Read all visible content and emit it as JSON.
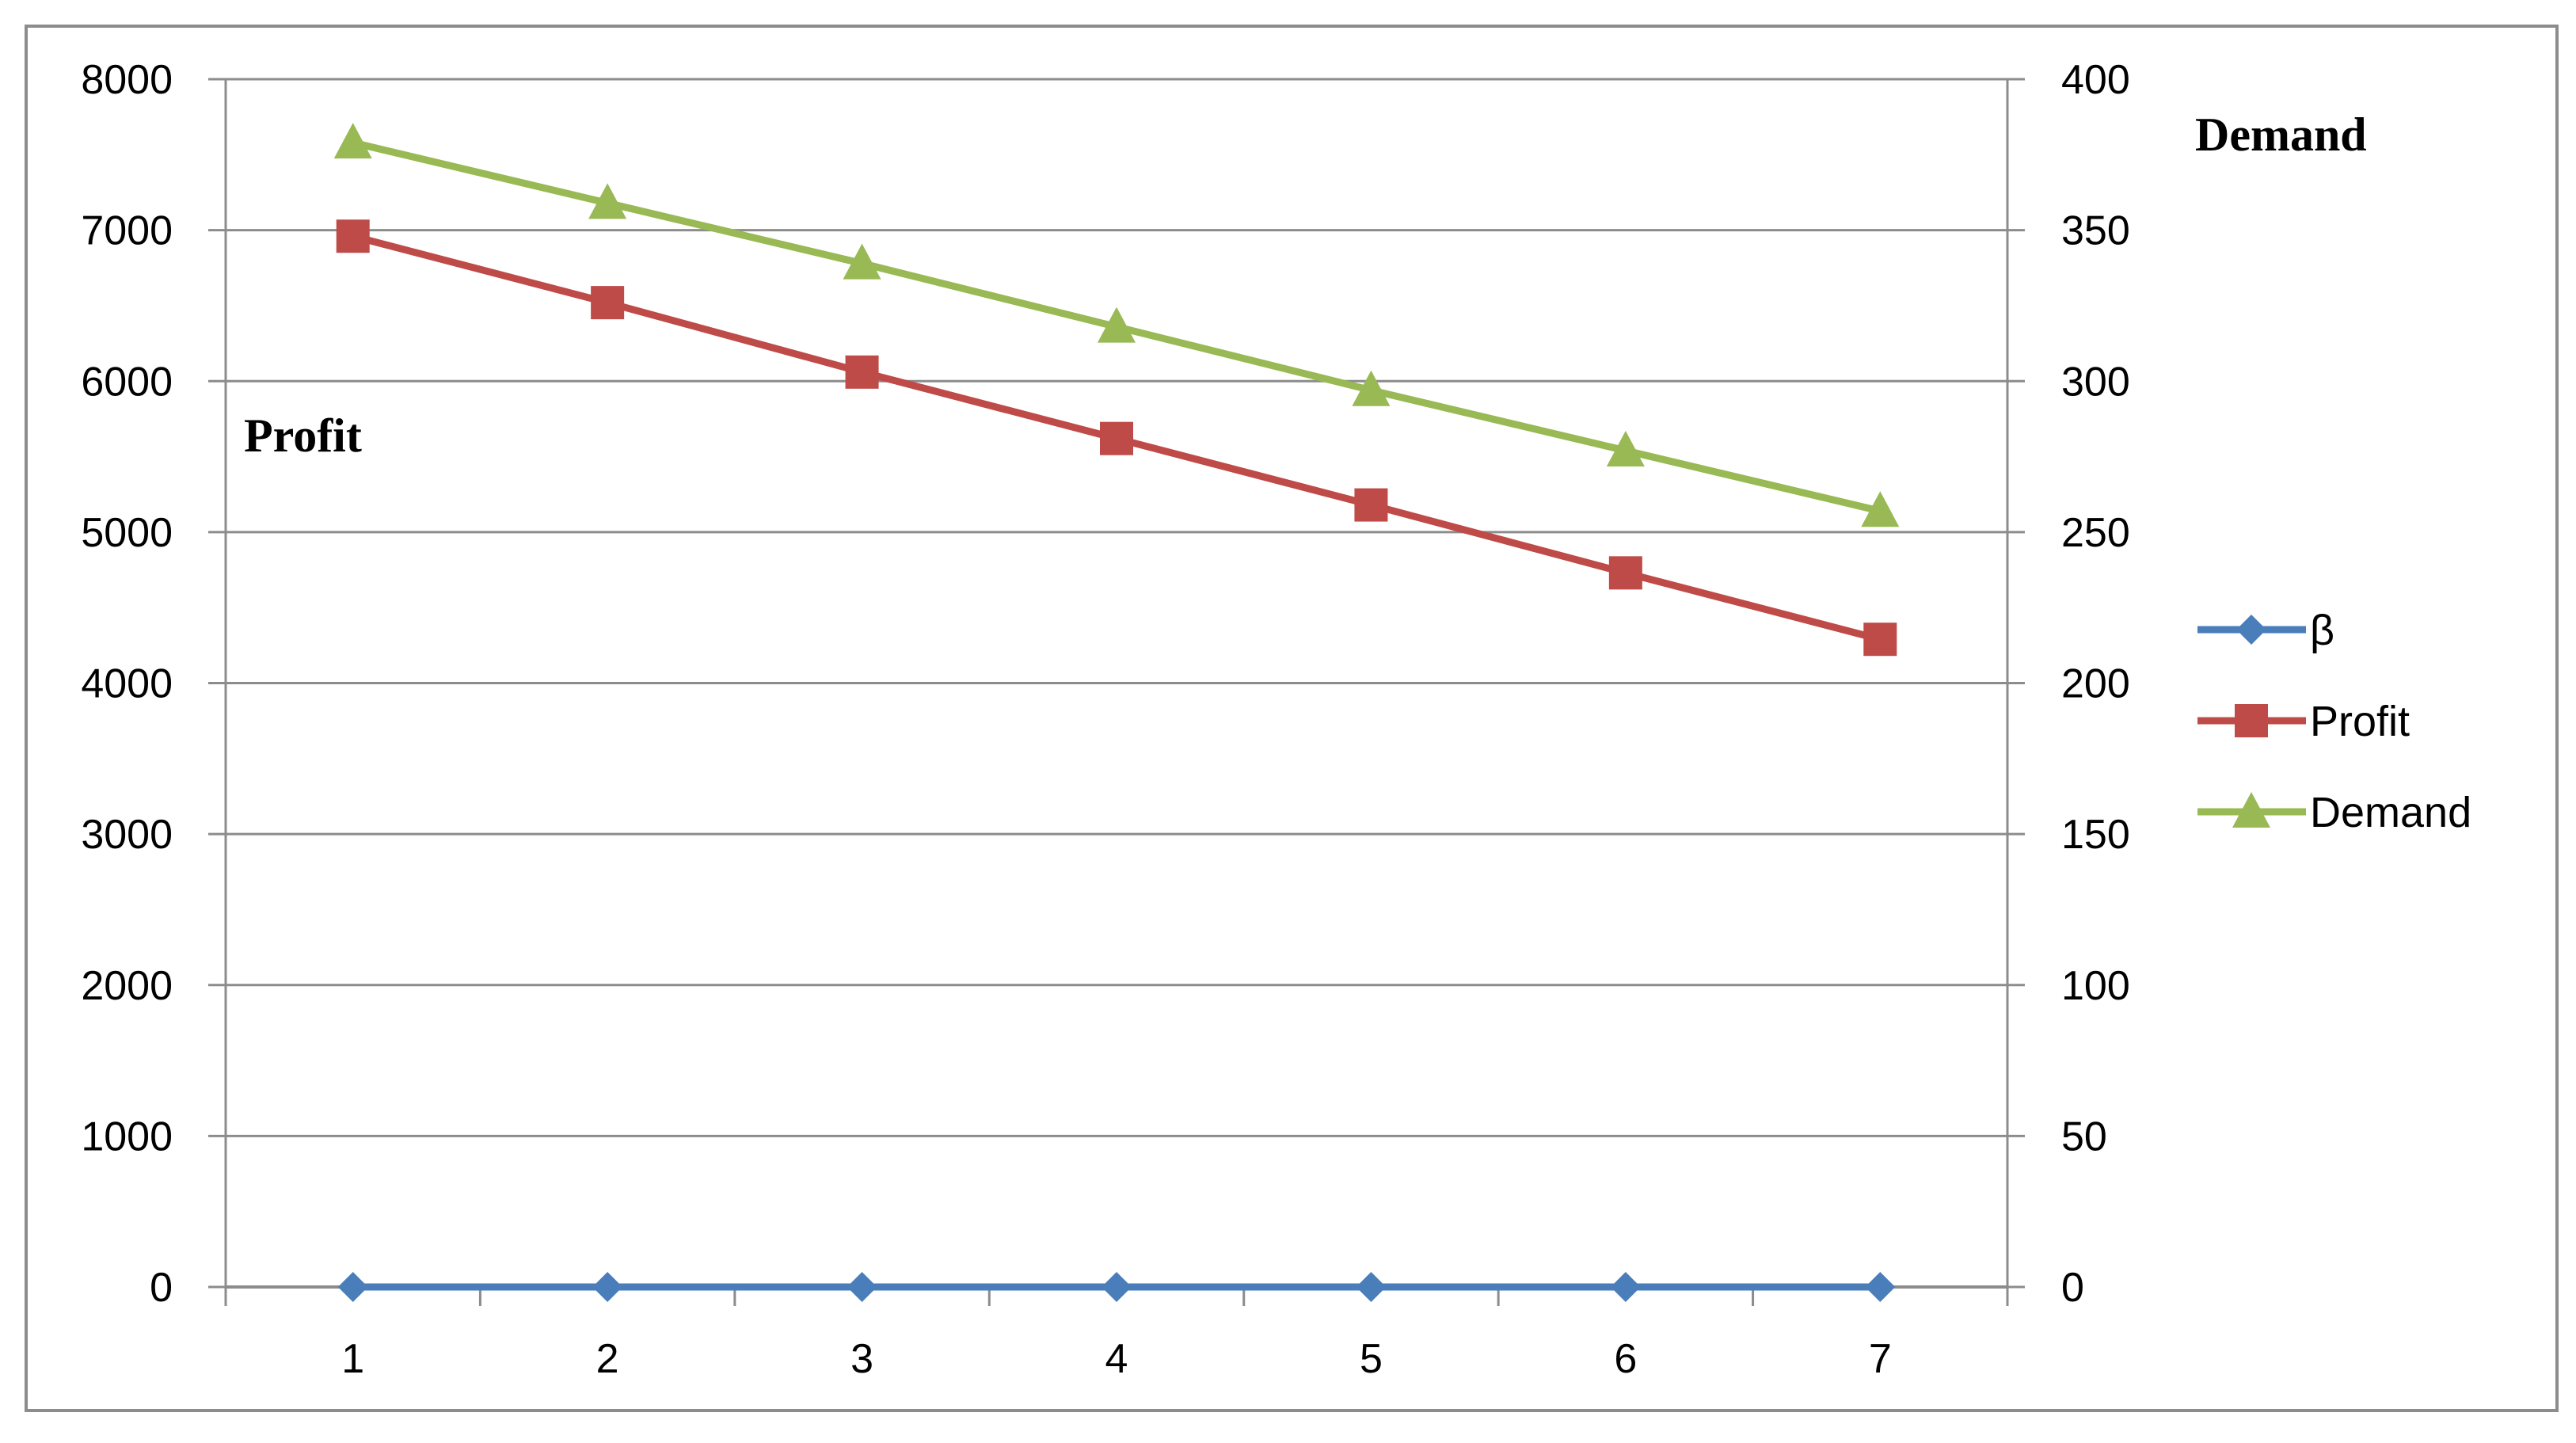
{
  "chart_data": {
    "type": "line",
    "x": [
      1,
      2,
      3,
      4,
      5,
      6,
      7
    ],
    "y_left": {
      "label": "Profit",
      "range": [
        0,
        8000
      ],
      "ticks": [
        0,
        1000,
        2000,
        3000,
        4000,
        5000,
        6000,
        7000,
        8000
      ]
    },
    "y_right": {
      "label": "Demand",
      "range": [
        0,
        400
      ],
      "ticks": [
        0,
        50,
        100,
        150,
        200,
        250,
        300,
        350,
        400
      ]
    },
    "series": [
      {
        "name": "β",
        "axis": "left",
        "marker": "diamond",
        "color": "#4a7ebb",
        "values": [
          0,
          0,
          0,
          0,
          0,
          0,
          0
        ]
      },
      {
        "name": "Profit",
        "axis": "left",
        "marker": "square",
        "color": "#be4b48",
        "values": [
          6960,
          6520,
          6060,
          5620,
          5180,
          4730,
          4290
        ]
      },
      {
        "name": "Demand",
        "axis": "right",
        "marker": "triangle",
        "color": "#98b954",
        "values": [
          379,
          359,
          339,
          318,
          297,
          277,
          257
        ]
      }
    ],
    "grid": true,
    "legend_position": "right"
  }
}
